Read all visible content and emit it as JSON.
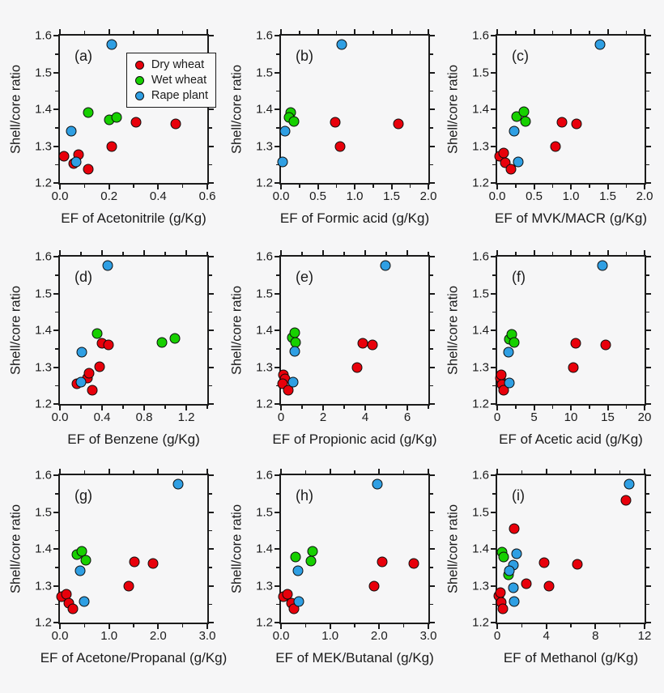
{
  "figure": {
    "y_axis_label": "Shell/core ratio",
    "y_ticks": [
      1.2,
      1.3,
      1.4,
      1.5,
      1.6
    ],
    "y_tick_labels": [
      "1.2",
      "1.3",
      "1.4",
      "1.5",
      "1.6"
    ],
    "ylim": [
      1.2,
      1.6
    ],
    "colors": {
      "dry": "#e8000b",
      "wet": "#17d000",
      "rape": "#2f9fe3",
      "marker_edge": "#0d0d0d",
      "frame": "#1b1b1b",
      "background": "#f6f6f7",
      "legend_background": "#fafafa"
    },
    "legend": {
      "items": [
        {
          "color_key": "dry",
          "label": "Dry wheat"
        },
        {
          "color_key": "wet",
          "label": "Wet wheat"
        },
        {
          "color_key": "rape",
          "label": "Rape plant"
        }
      ]
    }
  },
  "chart_data": [
    {
      "type": "scatter",
      "panel_label": "(a)",
      "x_label": "EF of Acetonitrile (g/Kg)",
      "xlim": [
        0,
        0.6
      ],
      "x_ticks": [
        0,
        0.2,
        0.4,
        0.6
      ],
      "x_tick_labels": [
        "0.0",
        "0.2",
        "0.4",
        "0.6"
      ],
      "show_legend": true,
      "series": [
        {
          "name": "Dry wheat",
          "color_key": "dry",
          "points": [
            [
              0.015,
              1.272
            ],
            [
              0.055,
              1.252
            ],
            [
              0.075,
              1.278
            ],
            [
              0.115,
              1.238
            ],
            [
              0.21,
              1.3
            ],
            [
              0.31,
              1.364
            ],
            [
              0.47,
              1.361
            ]
          ]
        },
        {
          "name": "Wet wheat",
          "color_key": "wet",
          "points": [
            [
              0.115,
              1.392
            ],
            [
              0.2,
              1.371
            ],
            [
              0.23,
              1.379
            ]
          ]
        },
        {
          "name": "Rape plant",
          "color_key": "rape",
          "points": [
            [
              0.045,
              1.341
            ],
            [
              0.065,
              1.257
            ],
            [
              0.21,
              1.576
            ]
          ]
        }
      ]
    },
    {
      "type": "scatter",
      "panel_label": "(b)",
      "x_label": "EF of Formic acid (g/Kg)",
      "xlim": [
        0,
        2
      ],
      "x_ticks": [
        0,
        0.5,
        1,
        1.5,
        2
      ],
      "x_tick_labels": [
        "0.0",
        "0.5",
        "1.0",
        "1.5",
        "2.0"
      ],
      "show_legend": false,
      "series": [
        {
          "name": "Dry wheat",
          "color_key": "dry",
          "points": [
            [
              0.74,
              1.364
            ],
            [
              0.8,
              1.3
            ],
            [
              1.59,
              1.361
            ]
          ]
        },
        {
          "name": "Wet wheat",
          "color_key": "wet",
          "points": [
            [
              0.13,
              1.391
            ],
            [
              0.11,
              1.377
            ],
            [
              0.18,
              1.368
            ]
          ]
        },
        {
          "name": "Rape plant",
          "color_key": "rape",
          "points": [
            [
              0.05,
              1.341
            ],
            [
              0.02,
              1.258
            ],
            [
              0.82,
              1.576
            ]
          ]
        }
      ]
    },
    {
      "type": "scatter",
      "panel_label": "(c)",
      "x_label": "EF of MVK/MACR (g/Kg)",
      "xlim": [
        0,
        2
      ],
      "x_ticks": [
        0,
        0.5,
        1,
        1.5,
        2
      ],
      "x_tick_labels": [
        "0.0",
        "0.5",
        "1.0",
        "1.5",
        "2.0"
      ],
      "show_legend": false,
      "series": [
        {
          "name": "Dry wheat",
          "color_key": "dry",
          "points": [
            [
              0.03,
              1.272
            ],
            [
              0.09,
              1.281
            ],
            [
              0.11,
              1.254
            ],
            [
              0.19,
              1.238
            ],
            [
              0.79,
              1.3
            ],
            [
              0.88,
              1.364
            ],
            [
              1.08,
              1.361
            ]
          ]
        },
        {
          "name": "Wet wheat",
          "color_key": "wet",
          "points": [
            [
              0.26,
              1.381
            ],
            [
              0.36,
              1.394
            ],
            [
              0.39,
              1.368
            ]
          ]
        },
        {
          "name": "Rape plant",
          "color_key": "rape",
          "points": [
            [
              0.23,
              1.341
            ],
            [
              0.29,
              1.258
            ],
            [
              1.4,
              1.576
            ]
          ]
        }
      ]
    },
    {
      "type": "scatter",
      "panel_label": "(d)",
      "x_label": "EF of Benzene (g/Kg)",
      "xlim": [
        0,
        1.4
      ],
      "x_ticks": [
        0,
        0.4,
        0.8,
        1.2
      ],
      "x_tick_labels": [
        "0.0",
        "0.4",
        "0.8",
        "1.2"
      ],
      "show_legend": false,
      "series": [
        {
          "name": "Dry wheat",
          "color_key": "dry",
          "points": [
            [
              0.16,
              1.254
            ],
            [
              0.26,
              1.27
            ],
            [
              0.28,
              1.283
            ],
            [
              0.31,
              1.238
            ],
            [
              0.38,
              1.301
            ],
            [
              0.4,
              1.365
            ],
            [
              0.46,
              1.36
            ]
          ]
        },
        {
          "name": "Wet wheat",
          "color_key": "wet",
          "points": [
            [
              0.35,
              1.392
            ],
            [
              0.97,
              1.368
            ],
            [
              1.09,
              1.378
            ]
          ]
        },
        {
          "name": "Rape plant",
          "color_key": "rape",
          "points": [
            [
              0.21,
              1.341
            ],
            [
              0.2,
              1.259
            ],
            [
              0.45,
              1.576
            ]
          ]
        }
      ]
    },
    {
      "type": "scatter",
      "panel_label": "(e)",
      "x_label": "EF of Propionic acid (g/Kg)",
      "xlim": [
        0,
        7
      ],
      "x_ticks": [
        0,
        2,
        4,
        6
      ],
      "x_tick_labels": [
        "0",
        "2",
        "4",
        "6"
      ],
      "show_legend": false,
      "series": [
        {
          "name": "Dry wheat",
          "color_key": "dry",
          "points": [
            [
              0.1,
              1.28
            ],
            [
              0.18,
              1.268
            ],
            [
              0.08,
              1.256
            ],
            [
              0.35,
              1.238
            ],
            [
              3.6,
              1.3
            ],
            [
              3.87,
              1.364
            ],
            [
              4.35,
              1.36
            ]
          ]
        },
        {
          "name": "Wet wheat",
          "color_key": "wet",
          "points": [
            [
              0.52,
              1.38
            ],
            [
              0.67,
              1.394
            ],
            [
              0.7,
              1.368
            ]
          ]
        },
        {
          "name": "Rape plant",
          "color_key": "rape",
          "points": [
            [
              0.67,
              1.342
            ],
            [
              0.58,
              1.26
            ],
            [
              4.95,
              1.576
            ]
          ]
        }
      ]
    },
    {
      "type": "scatter",
      "panel_label": "(f)",
      "x_label": "EF of Acetic acid (g/Kg)",
      "xlim": [
        0,
        20
      ],
      "x_ticks": [
        0,
        5,
        10,
        15,
        20
      ],
      "x_tick_labels": [
        "0",
        "5",
        "10",
        "15",
        "20"
      ],
      "show_legend": false,
      "series": [
        {
          "name": "Dry wheat",
          "color_key": "dry",
          "points": [
            [
              0.45,
              1.271
            ],
            [
              0.6,
              1.279
            ],
            [
              0.65,
              1.252
            ],
            [
              0.85,
              1.237
            ],
            [
              10.3,
              1.3
            ],
            [
              10.7,
              1.364
            ],
            [
              14.7,
              1.36
            ]
          ]
        },
        {
          "name": "Wet wheat",
          "color_key": "wet",
          "points": [
            [
              1.6,
              1.375
            ],
            [
              2.0,
              1.39
            ],
            [
              2.3,
              1.366
            ]
          ]
        },
        {
          "name": "Rape plant",
          "color_key": "rape",
          "points": [
            [
              1.5,
              1.341
            ],
            [
              1.6,
              1.257
            ],
            [
              14.3,
              1.576
            ]
          ]
        }
      ]
    },
    {
      "type": "scatter",
      "panel_label": "(g)",
      "x_label": "EF of Acetone/Propanal (g/Kg)",
      "xlim": [
        0,
        3
      ],
      "x_ticks": [
        0,
        1,
        2,
        3
      ],
      "x_tick_labels": [
        "0.0",
        "1.0",
        "2.0",
        "3.0"
      ],
      "show_legend": false,
      "series": [
        {
          "name": "Dry wheat",
          "color_key": "dry",
          "points": [
            [
              0.04,
              1.27
            ],
            [
              0.13,
              1.277
            ],
            [
              0.18,
              1.252
            ],
            [
              0.27,
              1.238
            ],
            [
              1.4,
              1.3
            ],
            [
              1.51,
              1.364
            ],
            [
              1.9,
              1.36
            ]
          ]
        },
        {
          "name": "Wet wheat",
          "color_key": "wet",
          "points": [
            [
              0.34,
              1.384
            ],
            [
              0.45,
              1.394
            ],
            [
              0.53,
              1.37
            ]
          ]
        },
        {
          "name": "Rape plant",
          "color_key": "rape",
          "points": [
            [
              0.41,
              1.341
            ],
            [
              0.49,
              1.258
            ],
            [
              2.41,
              1.576
            ]
          ]
        }
      ]
    },
    {
      "type": "scatter",
      "panel_label": "(h)",
      "x_label": "EF of MEK/Butanal (g/Kg)",
      "xlim": [
        0,
        3
      ],
      "x_ticks": [
        0,
        1,
        2,
        3
      ],
      "x_tick_labels": [
        "0.0",
        "1.0",
        "2.0",
        "3.0"
      ],
      "show_legend": false,
      "series": [
        {
          "name": "Dry wheat",
          "color_key": "dry",
          "points": [
            [
              0.05,
              1.27
            ],
            [
              0.13,
              1.277
            ],
            [
              0.21,
              1.252
            ],
            [
              0.26,
              1.237
            ],
            [
              1.9,
              1.3
            ],
            [
              2.06,
              1.364
            ],
            [
              2.7,
              1.36
            ]
          ]
        },
        {
          "name": "Wet wheat",
          "color_key": "wet",
          "points": [
            [
              0.29,
              1.379
            ],
            [
              0.64,
              1.394
            ],
            [
              0.61,
              1.368
            ]
          ]
        },
        {
          "name": "Rape plant",
          "color_key": "rape",
          "points": [
            [
              0.34,
              1.341
            ],
            [
              0.36,
              1.258
            ],
            [
              1.96,
              1.576
            ]
          ]
        }
      ]
    },
    {
      "type": "scatter",
      "panel_label": "(i)",
      "x_label": "EF of Methanol (g/Kg)",
      "xlim": [
        0,
        12
      ],
      "x_ticks": [
        0,
        4,
        8,
        12
      ],
      "x_tick_labels": [
        "0",
        "4",
        "8",
        "12"
      ],
      "show_legend": false,
      "series": [
        {
          "name": "Dry wheat",
          "color_key": "dry",
          "points": [
            [
              0.15,
              1.272
            ],
            [
              0.28,
              1.281
            ],
            [
              0.3,
              1.254
            ],
            [
              0.48,
              1.237
            ],
            [
              1.4,
              1.456
            ],
            [
              2.35,
              1.306
            ],
            [
              3.8,
              1.363
            ],
            [
              4.2,
              1.299
            ],
            [
              6.55,
              1.359
            ],
            [
              10.5,
              1.532
            ]
          ]
        },
        {
          "name": "Wet wheat",
          "color_key": "wet",
          "points": [
            [
              0.4,
              1.391
            ],
            [
              0.55,
              1.377
            ],
            [
              0.9,
              1.33
            ]
          ]
        },
        {
          "name": "Rape plant",
          "color_key": "rape",
          "points": [
            [
              1.6,
              1.386
            ],
            [
              1.35,
              1.356
            ],
            [
              1.0,
              1.34
            ],
            [
              1.3,
              1.294
            ],
            [
              1.37,
              1.258
            ],
            [
              10.75,
              1.576
            ]
          ]
        }
      ]
    }
  ]
}
